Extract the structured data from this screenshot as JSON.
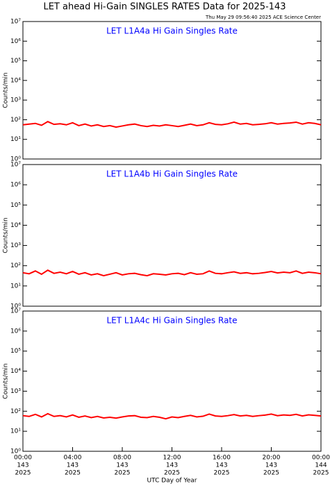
{
  "title": "LET ahead Hi-Gain SINGLES RATES Data for 2025-143",
  "subtitle": "Thu May 29 09:56:40 2025 ACE Science Center",
  "chart_data": [
    {
      "type": "line",
      "title": "LET L1A4a Hi Gain Singles Rate",
      "ylabel": "Counts/min",
      "log_y": true,
      "xlim": [
        0,
        24
      ],
      "ylim": [
        1,
        10000000
      ],
      "yticks": [
        {
          "value": 1,
          "label": "10⁰"
        },
        {
          "value": 10,
          "label": "10¹"
        },
        {
          "value": 100,
          "label": "10²"
        },
        {
          "value": 1000,
          "label": "10³"
        },
        {
          "value": 10000,
          "label": "10⁴"
        },
        {
          "value": 100000,
          "label": "10⁵"
        },
        {
          "value": 1000000,
          "label": "10⁶"
        },
        {
          "value": 10000000,
          "label": "10⁷"
        }
      ],
      "series": [
        {
          "name": "L1A4a",
          "color": "#ff0000",
          "x": [
            0,
            0.5,
            1,
            1.5,
            2,
            2.5,
            3,
            3.5,
            4,
            4.5,
            5,
            5.5,
            6,
            6.5,
            7,
            7.5,
            8,
            8.5,
            9,
            9.5,
            10,
            10.5,
            11,
            11.5,
            12,
            12.5,
            13,
            13.5,
            14,
            14.5,
            15,
            15.5,
            16,
            16.5,
            17,
            17.5,
            18,
            18.5,
            19,
            19.5,
            20,
            20.5,
            21,
            21.5,
            22,
            22.5,
            23,
            23.5,
            24
          ],
          "values": [
            55,
            60,
            65,
            52,
            80,
            58,
            62,
            55,
            70,
            50,
            60,
            48,
            55,
            45,
            50,
            42,
            48,
            55,
            60,
            50,
            45,
            52,
            48,
            55,
            50,
            45,
            52,
            60,
            50,
            55,
            70,
            58,
            55,
            62,
            75,
            60,
            65,
            55,
            58,
            62,
            70,
            60,
            65,
            68,
            75,
            60,
            70,
            65,
            55
          ]
        }
      ]
    },
    {
      "type": "line",
      "title": "LET L1A4b Hi Gain Singles Rate",
      "ylabel": "Counts/min",
      "log_y": true,
      "xlim": [
        0,
        24
      ],
      "ylim": [
        1,
        10000000
      ],
      "yticks": [
        {
          "value": 1,
          "label": "10⁰"
        },
        {
          "value": 10,
          "label": "10¹"
        },
        {
          "value": 100,
          "label": "10²"
        },
        {
          "value": 1000,
          "label": "10³"
        },
        {
          "value": 10000,
          "label": "10⁴"
        },
        {
          "value": 100000,
          "label": "10⁵"
        },
        {
          "value": 1000000,
          "label": "10⁶"
        },
        {
          "value": 10000000,
          "label": "10⁷"
        }
      ],
      "series": [
        {
          "name": "L1A4b",
          "color": "#ff0000",
          "x": [
            0,
            0.5,
            1,
            1.5,
            2,
            2.5,
            3,
            3.5,
            4,
            4.5,
            5,
            5.5,
            6,
            6.5,
            7,
            7.5,
            8,
            8.5,
            9,
            9.5,
            10,
            10.5,
            11,
            11.5,
            12,
            12.5,
            13,
            13.5,
            14,
            14.5,
            15,
            15.5,
            16,
            16.5,
            17,
            17.5,
            18,
            18.5,
            19,
            19.5,
            20,
            20.5,
            21,
            21.5,
            22,
            22.5,
            23,
            23.5,
            24
          ],
          "values": [
            45,
            40,
            55,
            38,
            60,
            42,
            48,
            40,
            52,
            38,
            45,
            35,
            40,
            32,
            38,
            45,
            35,
            40,
            42,
            36,
            32,
            40,
            38,
            35,
            40,
            42,
            36,
            45,
            38,
            40,
            55,
            42,
            40,
            45,
            50,
            42,
            45,
            40,
            42,
            46,
            52,
            44,
            48,
            45,
            55,
            42,
            48,
            45,
            40
          ]
        }
      ]
    },
    {
      "type": "line",
      "title": "LET L1A4c Hi Gain Singles Rate",
      "ylabel": "Counts/min",
      "log_y": true,
      "xlim": [
        0,
        24
      ],
      "ylim": [
        1,
        10000000
      ],
      "yticks": [
        {
          "value": 1,
          "label": "10⁰"
        },
        {
          "value": 10,
          "label": "10¹"
        },
        {
          "value": 100,
          "label": "10²"
        },
        {
          "value": 1000,
          "label": "10³"
        },
        {
          "value": 10000,
          "label": "10⁴"
        },
        {
          "value": 100000,
          "label": "10⁵"
        },
        {
          "value": 1000000,
          "label": "10⁶"
        },
        {
          "value": 10000000,
          "label": "10⁷"
        }
      ],
      "xticks": [
        {
          "value": 0,
          "label": [
            "00:00",
            "143",
            "2025"
          ]
        },
        {
          "value": 4,
          "label": [
            "04:00",
            "143",
            "2025"
          ]
        },
        {
          "value": 8,
          "label": [
            "08:00",
            "143",
            "2025"
          ]
        },
        {
          "value": 12,
          "label": [
            "12:00",
            "143",
            "2025"
          ]
        },
        {
          "value": 16,
          "label": [
            "16:00",
            "143",
            "2025"
          ]
        },
        {
          "value": 20,
          "label": [
            "20:00",
            "143",
            "2025"
          ]
        },
        {
          "value": 24,
          "label": [
            "00:00",
            "144",
            "2025"
          ]
        }
      ],
      "xlabel": "UTC Day of Year",
      "series": [
        {
          "name": "L1A4c",
          "color": "#ff0000",
          "x": [
            0,
            0.5,
            1,
            1.5,
            2,
            2.5,
            3,
            3.5,
            4,
            4.5,
            5,
            5.5,
            6,
            6.5,
            7,
            7.5,
            8,
            8.5,
            9,
            9.5,
            10,
            10.5,
            11,
            11.5,
            12,
            12.5,
            13,
            13.5,
            14,
            14.5,
            15,
            15.5,
            16,
            16.5,
            17,
            17.5,
            18,
            18.5,
            19,
            19.5,
            20,
            20.5,
            21,
            21.5,
            22,
            22.5,
            23,
            23.5,
            24
          ],
          "values": [
            60,
            55,
            70,
            52,
            75,
            55,
            60,
            52,
            65,
            50,
            58,
            48,
            55,
            46,
            50,
            45,
            52,
            58,
            60,
            50,
            48,
            55,
            50,
            42,
            52,
            48,
            55,
            62,
            52,
            56,
            72,
            58,
            55,
            60,
            68,
            58,
            62,
            55,
            60,
            64,
            72,
            60,
            65,
            62,
            70,
            58,
            66,
            62,
            58
          ]
        }
      ]
    }
  ]
}
